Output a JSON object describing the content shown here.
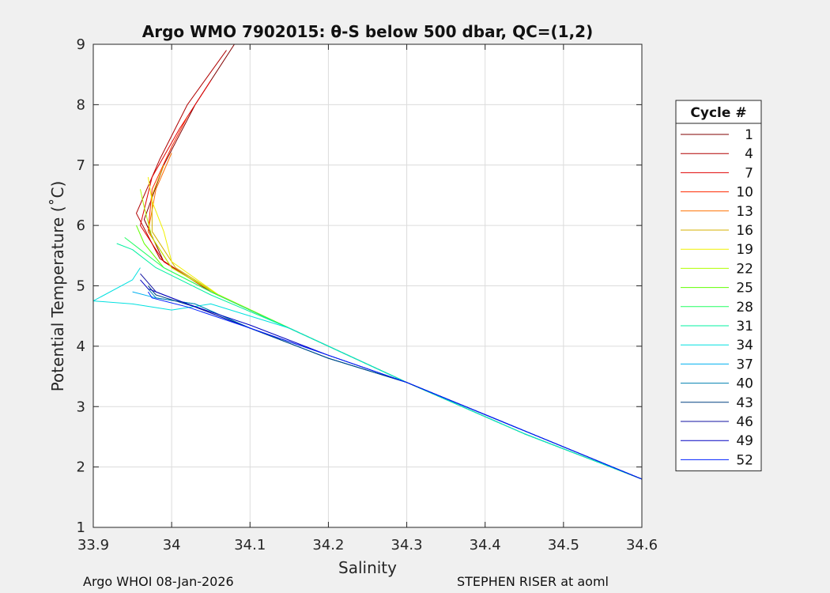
{
  "chart_data": {
    "type": "line",
    "title": "Argo WMO 7902015: θ-S below 500 dbar,  QC=(1,2)",
    "xlabel": "Salinity",
    "ylabel": "Potential Temperature (˚C)",
    "xlim": [
      33.9,
      34.6
    ],
    "ylim": [
      1,
      9
    ],
    "xticks": [
      "33.9",
      "34",
      "34.1",
      "34.2",
      "34.3",
      "34.4",
      "34.5",
      "34.6"
    ],
    "yticks": [
      "1",
      "2",
      "3",
      "4",
      "5",
      "6",
      "7",
      "8",
      "9"
    ],
    "grid": true,
    "legend": {
      "title": "Cycle #",
      "placement": "outside-right"
    },
    "series": [
      {
        "name": "1",
        "color": "#800000",
        "points": [
          [
            34.6,
            1.8
          ],
          [
            34.45,
            2.55
          ],
          [
            34.3,
            3.4
          ],
          [
            34.15,
            4.3
          ],
          [
            34.05,
            4.9
          ],
          [
            33.99,
            5.4
          ],
          [
            33.965,
            6.1
          ],
          [
            33.99,
            7.0
          ],
          [
            34.03,
            8.0
          ],
          [
            34.08,
            9.0
          ]
        ]
      },
      {
        "name": "4",
        "color": "#b00000",
        "points": [
          [
            34.6,
            1.8
          ],
          [
            34.45,
            2.55
          ],
          [
            34.3,
            3.4
          ],
          [
            34.15,
            4.3
          ],
          [
            34.05,
            4.9
          ],
          [
            33.985,
            5.45
          ],
          [
            33.955,
            6.2
          ],
          [
            33.985,
            7.1
          ],
          [
            34.02,
            8.0
          ],
          [
            34.07,
            8.9
          ]
        ]
      },
      {
        "name": "7",
        "color": "#e00000",
        "points": [
          [
            34.6,
            1.8
          ],
          [
            34.45,
            2.55
          ],
          [
            34.3,
            3.4
          ],
          [
            34.15,
            4.3
          ],
          [
            34.05,
            4.9
          ],
          [
            33.99,
            5.4
          ],
          [
            33.96,
            6.0
          ],
          [
            33.975,
            6.8
          ],
          [
            34.01,
            7.6
          ],
          [
            34.05,
            8.4
          ]
        ]
      },
      {
        "name": "10",
        "color": "#ff2a00",
        "points": [
          [
            34.6,
            1.8
          ],
          [
            34.45,
            2.55
          ],
          [
            34.3,
            3.4
          ],
          [
            34.15,
            4.3
          ],
          [
            34.06,
            4.85
          ],
          [
            34.0,
            5.3
          ],
          [
            33.97,
            5.9
          ],
          [
            33.975,
            6.6
          ],
          [
            34.0,
            7.3
          ],
          [
            34.02,
            7.8
          ]
        ]
      },
      {
        "name": "13",
        "color": "#ff7000",
        "points": [
          [
            34.6,
            1.8
          ],
          [
            34.45,
            2.55
          ],
          [
            34.3,
            3.4
          ],
          [
            34.15,
            4.3
          ],
          [
            34.06,
            4.85
          ],
          [
            34.0,
            5.3
          ],
          [
            33.97,
            5.9
          ],
          [
            33.98,
            6.6
          ],
          [
            34.0,
            7.2
          ]
        ]
      },
      {
        "name": "16",
        "color": "#d4b000",
        "points": [
          [
            34.6,
            1.8
          ],
          [
            34.45,
            2.55
          ],
          [
            34.3,
            3.4
          ],
          [
            34.15,
            4.3
          ],
          [
            34.06,
            4.85
          ],
          [
            34.005,
            5.3
          ],
          [
            33.975,
            5.9
          ],
          [
            33.975,
            6.5
          ],
          [
            33.99,
            7.0
          ]
        ]
      },
      {
        "name": "19",
        "color": "#f0f000",
        "points": [
          [
            34.6,
            1.8
          ],
          [
            34.45,
            2.55
          ],
          [
            34.3,
            3.4
          ],
          [
            34.15,
            4.3
          ],
          [
            34.06,
            4.85
          ],
          [
            34.0,
            5.4
          ],
          [
            33.99,
            5.9
          ],
          [
            33.975,
            6.4
          ],
          [
            33.97,
            6.8
          ]
        ]
      },
      {
        "name": "22",
        "color": "#b0ff00",
        "points": [
          [
            34.6,
            1.8
          ],
          [
            34.45,
            2.55
          ],
          [
            34.3,
            3.4
          ],
          [
            34.15,
            4.3
          ],
          [
            34.06,
            4.85
          ],
          [
            34.0,
            5.3
          ],
          [
            33.975,
            5.8
          ],
          [
            33.965,
            6.3
          ],
          [
            33.96,
            6.6
          ]
        ]
      },
      {
        "name": "25",
        "color": "#60ff00",
        "points": [
          [
            34.6,
            1.8
          ],
          [
            34.45,
            2.55
          ],
          [
            34.3,
            3.4
          ],
          [
            34.15,
            4.3
          ],
          [
            34.05,
            4.9
          ],
          [
            33.99,
            5.3
          ],
          [
            33.965,
            5.7
          ],
          [
            33.955,
            6.0
          ]
        ]
      },
      {
        "name": "28",
        "color": "#20ff60",
        "points": [
          [
            34.6,
            1.8
          ],
          [
            34.45,
            2.55
          ],
          [
            34.3,
            3.4
          ],
          [
            34.15,
            4.3
          ],
          [
            34.05,
            4.9
          ],
          [
            33.99,
            5.3
          ],
          [
            33.96,
            5.6
          ],
          [
            33.94,
            5.8
          ]
        ]
      },
      {
        "name": "31",
        "color": "#00f0a0",
        "points": [
          [
            34.6,
            1.8
          ],
          [
            34.45,
            2.55
          ],
          [
            34.3,
            3.4
          ],
          [
            34.15,
            4.3
          ],
          [
            34.05,
            4.85
          ],
          [
            33.98,
            5.3
          ],
          [
            33.95,
            5.6
          ],
          [
            33.93,
            5.7
          ]
        ]
      },
      {
        "name": "34",
        "color": "#00e0e0",
        "points": [
          [
            34.6,
            1.8
          ],
          [
            34.45,
            2.55
          ],
          [
            34.3,
            3.4
          ],
          [
            34.15,
            4.3
          ],
          [
            34.05,
            4.7
          ],
          [
            34.0,
            4.6
          ],
          [
            33.95,
            4.7
          ],
          [
            33.9,
            4.75
          ],
          [
            33.95,
            5.1
          ],
          [
            33.96,
            5.3
          ]
        ]
      },
      {
        "name": "37",
        "color": "#00b0f0",
        "points": [
          [
            34.6,
            1.8
          ],
          [
            34.45,
            2.6
          ],
          [
            34.3,
            3.4
          ],
          [
            34.2,
            3.8
          ],
          [
            34.1,
            4.3
          ],
          [
            34.03,
            4.7
          ],
          [
            33.98,
            4.8
          ],
          [
            33.95,
            4.9
          ]
        ]
      },
      {
        "name": "40",
        "color": "#0080b0",
        "points": [
          [
            34.6,
            1.8
          ],
          [
            34.45,
            2.6
          ],
          [
            34.3,
            3.4
          ],
          [
            34.2,
            3.8
          ],
          [
            34.1,
            4.3
          ],
          [
            34.03,
            4.7
          ],
          [
            33.98,
            4.8
          ],
          [
            33.97,
            4.95
          ]
        ]
      },
      {
        "name": "43",
        "color": "#004080",
        "points": [
          [
            34.6,
            1.8
          ],
          [
            34.45,
            2.6
          ],
          [
            34.3,
            3.4
          ],
          [
            34.2,
            3.8
          ],
          [
            34.1,
            4.3
          ],
          [
            34.03,
            4.65
          ],
          [
            33.98,
            4.85
          ],
          [
            33.97,
            5.0
          ]
        ]
      },
      {
        "name": "46",
        "color": "#1010a0",
        "points": [
          [
            34.6,
            1.8
          ],
          [
            34.45,
            2.6
          ],
          [
            34.3,
            3.4
          ],
          [
            34.2,
            3.85
          ],
          [
            34.1,
            4.3
          ],
          [
            34.02,
            4.7
          ],
          [
            33.98,
            4.9
          ],
          [
            33.96,
            5.2
          ]
        ]
      },
      {
        "name": "49",
        "color": "#0000c0",
        "points": [
          [
            34.6,
            1.8
          ],
          [
            34.45,
            2.6
          ],
          [
            34.3,
            3.4
          ],
          [
            34.2,
            3.85
          ],
          [
            34.1,
            4.35
          ],
          [
            34.02,
            4.7
          ],
          [
            33.97,
            4.95
          ],
          [
            33.96,
            5.1
          ]
        ]
      },
      {
        "name": "52",
        "color": "#0020ff",
        "points": [
          [
            34.6,
            1.8
          ],
          [
            34.45,
            2.6
          ],
          [
            34.3,
            3.4
          ],
          [
            34.2,
            3.85
          ],
          [
            34.1,
            4.3
          ],
          [
            34.02,
            4.65
          ],
          [
            33.975,
            4.8
          ],
          [
            33.97,
            4.9
          ]
        ]
      }
    ]
  },
  "footer": {
    "left": "Argo WHOI 08-Jan-2026",
    "right": "STEPHEN RISER at aoml"
  }
}
